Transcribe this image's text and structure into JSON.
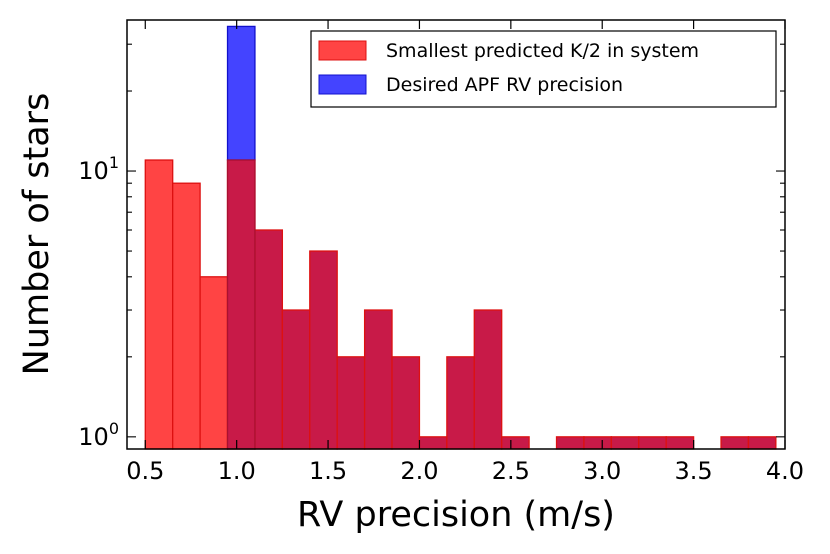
{
  "chart_data": {
    "type": "bar",
    "subtype": "histogram",
    "xlabel": "RV precision (m/s)",
    "ylabel": "Number of stars",
    "xlim": [
      0.4,
      4.0
    ],
    "ylim": [
      0.9,
      37
    ],
    "yscale": "log",
    "x_ticks": [
      "0.5",
      "1.0",
      "1.5",
      "2.0",
      "2.5",
      "3.0",
      "3.5",
      "4.0"
    ],
    "x_tick_values": [
      0.5,
      1.0,
      1.5,
      2.0,
      2.5,
      3.0,
      3.5,
      4.0
    ],
    "y_ticks": [
      {
        "value": 1,
        "base": "10",
        "exp": "0"
      },
      {
        "value": 10,
        "base": "10",
        "exp": "1"
      }
    ],
    "legend_position": "top-right",
    "series": [
      {
        "name": "Smallest predicted K/2 in system",
        "color": "#ff4444",
        "edge": "#dd1111",
        "bins": [
          {
            "start": 0.5,
            "end": 0.65,
            "count": 11
          },
          {
            "start": 0.65,
            "end": 0.8,
            "count": 9
          },
          {
            "start": 0.8,
            "end": 0.95,
            "count": 4
          },
          {
            "start": 0.95,
            "end": 1.1,
            "count": 11
          },
          {
            "start": 1.1,
            "end": 1.25,
            "count": 6
          },
          {
            "start": 1.25,
            "end": 1.4,
            "count": 3
          },
          {
            "start": 1.4,
            "end": 1.55,
            "count": 5
          },
          {
            "start": 1.55,
            "end": 1.7,
            "count": 2
          },
          {
            "start": 1.7,
            "end": 1.85,
            "count": 3
          },
          {
            "start": 1.85,
            "end": 2.0,
            "count": 2
          },
          {
            "start": 2.0,
            "end": 2.15,
            "count": 1
          },
          {
            "start": 2.15,
            "end": 2.3,
            "count": 2
          },
          {
            "start": 2.3,
            "end": 2.45,
            "count": 3
          },
          {
            "start": 2.45,
            "end": 2.6,
            "count": 1
          },
          {
            "start": 2.75,
            "end": 2.9,
            "count": 1
          },
          {
            "start": 2.9,
            "end": 3.05,
            "count": 1
          },
          {
            "start": 3.05,
            "end": 3.2,
            "count": 1
          },
          {
            "start": 3.2,
            "end": 3.35,
            "count": 1
          },
          {
            "start": 3.35,
            "end": 3.5,
            "count": 1
          },
          {
            "start": 3.65,
            "end": 3.8,
            "count": 1
          },
          {
            "start": 3.8,
            "end": 3.95,
            "count": 1
          }
        ]
      },
      {
        "name": "Desired APF RV precision",
        "color": "#4444ff",
        "edge": "#1111cc",
        "bins": [
          {
            "start": 0.95,
            "end": 1.1,
            "count": 35
          }
        ]
      }
    ],
    "overlap_color": "#c81a48"
  }
}
